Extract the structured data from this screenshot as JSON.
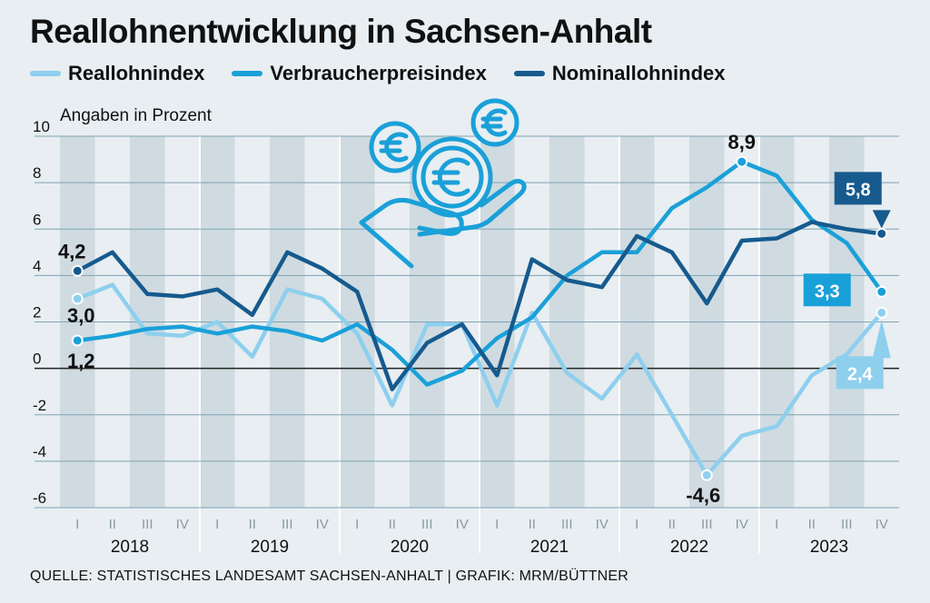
{
  "colors": {
    "reallohn": "#8ecfee",
    "verbraucher": "#1aa0d8",
    "nominal": "#165a8e",
    "band": "#cfdbe0",
    "background": "#e8eef1"
  },
  "chart_data": {
    "type": "line",
    "title": "Reallohnentwicklung in Sachsen-Anhalt",
    "ylabel": "Angaben in Prozent",
    "ylim": [
      -6,
      10
    ],
    "yticks": [
      "10",
      "8",
      "6",
      "4",
      "2",
      "0",
      "-2",
      "-4",
      "-6"
    ],
    "quarters": [
      "I",
      "II",
      "III",
      "IV"
    ],
    "years": [
      "2018",
      "2019",
      "2020",
      "2021",
      "2022",
      "2023"
    ],
    "series": [
      {
        "name": "Reallohnindex",
        "color_key": "reallohn",
        "values": [
          3.0,
          3.6,
          1.5,
          1.4,
          2.0,
          0.5,
          3.4,
          3.0,
          1.5,
          -1.6,
          1.9,
          1.9,
          -1.6,
          2.4,
          -0.2,
          -1.3,
          0.6,
          -2.0,
          -4.6,
          -2.9,
          -2.5,
          -0.3,
          0.6,
          2.4
        ]
      },
      {
        "name": "Verbraucherpreisindex",
        "color_key": "verbraucher",
        "values": [
          1.2,
          1.4,
          1.7,
          1.8,
          1.5,
          1.8,
          1.6,
          1.2,
          1.9,
          0.8,
          -0.7,
          -0.1,
          1.3,
          2.2,
          4.0,
          5.0,
          5.0,
          6.9,
          7.8,
          8.9,
          8.3,
          6.4,
          5.4,
          3.3
        ]
      },
      {
        "name": "Nominallohnindex",
        "color_key": "nominal",
        "values": [
          4.2,
          5.0,
          3.2,
          3.1,
          3.4,
          2.3,
          5.0,
          4.3,
          3.3,
          -0.9,
          1.1,
          1.9,
          -0.3,
          4.7,
          3.8,
          3.5,
          5.7,
          5.0,
          2.8,
          5.5,
          5.6,
          6.3,
          6.0,
          5.8
        ]
      }
    ],
    "annotations": [
      {
        "text": "4,2",
        "series": 2,
        "index": 0
      },
      {
        "text": "3,0",
        "series": 0,
        "index": 0
      },
      {
        "text": "1,2",
        "series": 1,
        "index": 0
      },
      {
        "text": "8,9",
        "series": 1,
        "index": 19
      },
      {
        "text": "-4,6",
        "series": 0,
        "index": 18
      },
      {
        "text": "5,8",
        "series": 2,
        "index": 23
      },
      {
        "text": "3,3",
        "series": 1,
        "index": 23
      },
      {
        "text": "2,4",
        "series": 0,
        "index": 23
      }
    ]
  },
  "source": "QUELLE: STATISTISCHES LANDESAMT SACHSEN-ANHALT | GRAFIK: MRM/BÜTTNER"
}
